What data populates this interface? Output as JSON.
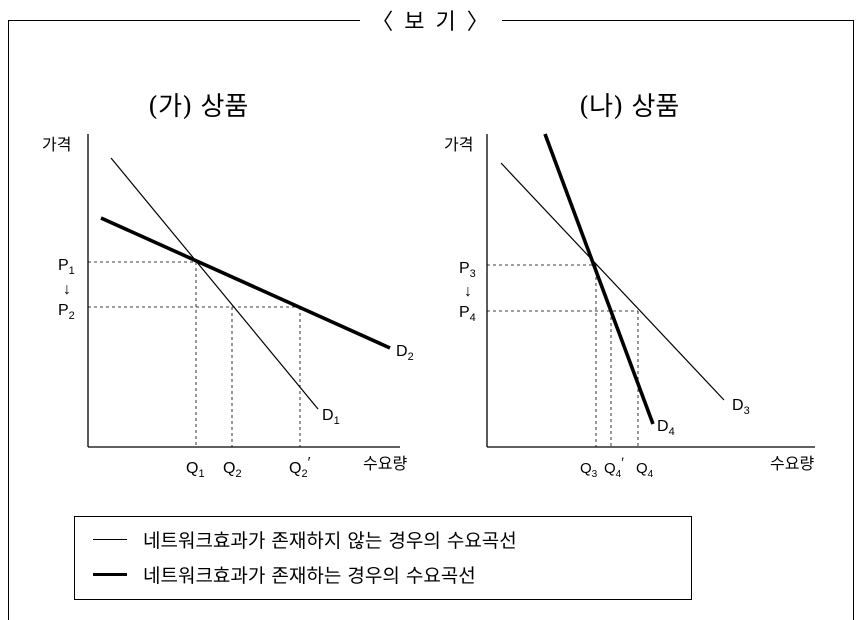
{
  "header": {
    "title": "〈 보 기 〉"
  },
  "panels": [
    {
      "title": "(가) 상품",
      "y_axis_label": "가격",
      "x_axis_label": "수요량",
      "price_labels": [
        "P",
        "↓",
        "P"
      ],
      "price_subscripts": [
        "1",
        "2"
      ],
      "quantity_labels": [
        "Q",
        "Q",
        "Q"
      ],
      "quantity_subscripts": [
        "1",
        "2",
        "2"
      ],
      "quantity_prime": "′",
      "curve_labels": [
        "D",
        "D"
      ],
      "curve_subscripts": [
        "2",
        "1"
      ]
    },
    {
      "title": "(나) 상품",
      "y_axis_label": "가격",
      "x_axis_label": "수요량",
      "price_labels": [
        "P",
        "↓",
        "P"
      ],
      "price_subscripts": [
        "3",
        "4"
      ],
      "quantity_labels": [
        "Q",
        "Q",
        "Q"
      ],
      "quantity_subscripts": [
        "3",
        "4",
        "4"
      ],
      "quantity_prime": "′",
      "curve_labels": [
        "D",
        "D"
      ],
      "curve_subscripts": [
        "3",
        "4"
      ]
    }
  ],
  "legend": {
    "items": [
      {
        "label": "네트워크효과가 존재하지 않는 경우의 수요곡선",
        "style": "thin"
      },
      {
        "label": "네트워크효과가 존재하는 경우의 수요곡선",
        "style": "thick"
      }
    ]
  }
}
